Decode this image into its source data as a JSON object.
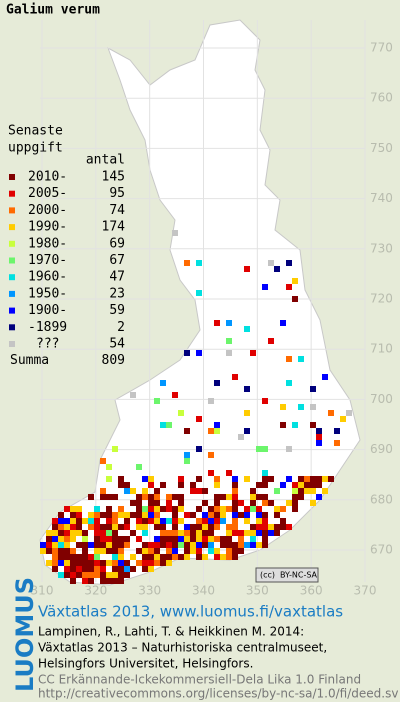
{
  "title": "Galium verum",
  "legend": {
    "heading": [
      "Senaste",
      "uppgift"
    ],
    "count_header": "antal",
    "entries": [
      {
        "label": "2010-",
        "count": 145,
        "color": "#800000"
      },
      {
        "label": "2005-",
        "count": 95,
        "color": "#e00000"
      },
      {
        "label": "2000-",
        "count": 74,
        "color": "#ff6a00"
      },
      {
        "label": "1990-",
        "count": 174,
        "color": "#ffcc00"
      },
      {
        "label": "1980-",
        "count": 69,
        "color": "#c8ff3c"
      },
      {
        "label": "1970-",
        "count": 67,
        "color": "#6cf56c"
      },
      {
        "label": "1960-",
        "count": 47,
        "color": "#00e0e0"
      },
      {
        "label": "1950-",
        "count": 23,
        "color": "#0096ff"
      },
      {
        "label": "1900-",
        "count": 59,
        "color": "#0000ff"
      },
      {
        "label": "-1899",
        "count": 2,
        "color": "#00007c"
      },
      {
        "label": "???",
        "count": 54,
        "color": "#c4c4c4"
      }
    ],
    "total": {
      "label": "Summa",
      "count": 809
    }
  },
  "grid": {
    "x_labels": [
      310,
      320,
      330,
      340,
      350,
      360,
      370
    ],
    "y_labels": [
      770,
      760,
      750,
      740,
      730,
      720,
      710,
      700,
      690,
      680,
      670
    ]
  },
  "badge": "BY-NC-SA",
  "footer": {
    "logo": "LUOMUS",
    "title": "Växtatlas 2013, www.luomus.fi/vaxtatlas",
    "citation": [
      "Lampinen, R., Lahti, T. & Heikkinen M. 2014:",
      "Växtatlas 2013 – Naturhistoriska centralmuseet,",
      "Helsingfors Universitet, Helsingfors."
    ],
    "license": [
      "CC Erkännande-Ickekommersiell-Dela Lika 1.0 Finland",
      "http://creativecommons.org/licenses/by-nc-sa/1.0/fi/deed.sv"
    ]
  }
}
